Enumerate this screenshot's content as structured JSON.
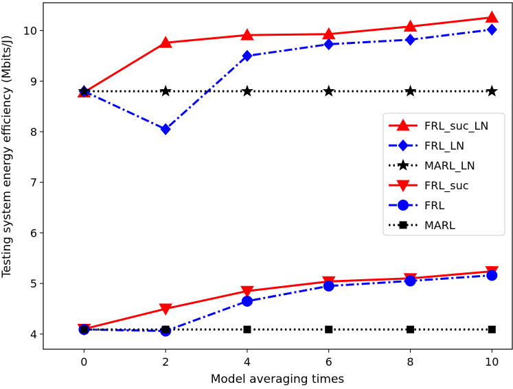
{
  "chart_data": {
    "type": "line",
    "title": "",
    "xlabel": "Model averaging times",
    "ylabel": "Testing system energy efficiency (Mbits/J)",
    "x": [
      0,
      2,
      4,
      6,
      8,
      10
    ],
    "xlim": [
      -1,
      10.5
    ],
    "ylim": [
      3.7,
      10.55
    ],
    "xticks": [
      0,
      2,
      4,
      6,
      8,
      10
    ],
    "yticks": [
      4,
      5,
      6,
      7,
      8,
      9,
      10
    ],
    "grid": false,
    "legend_position": "center-right",
    "series": [
      {
        "name": "FRL_suc_LN",
        "values": [
          8.78,
          9.76,
          9.91,
          9.93,
          10.08,
          10.26
        ],
        "color": "#ff0000",
        "linestyle": "solid",
        "marker": "triangle-up"
      },
      {
        "name": "FRL_LN",
        "values": [
          8.8,
          8.05,
          9.5,
          9.73,
          9.82,
          10.02
        ],
        "color": "#0000ff",
        "linestyle": "dashdot",
        "marker": "diamond"
      },
      {
        "name": "MARL_LN",
        "values": [
          8.8,
          8.8,
          8.8,
          8.8,
          8.8,
          8.8
        ],
        "color": "#000000",
        "linestyle": "dotted",
        "marker": "star"
      },
      {
        "name": "FRL_suc",
        "values": [
          4.1,
          4.5,
          4.85,
          5.04,
          5.1,
          5.24
        ],
        "color": "#ff0000",
        "linestyle": "solid",
        "marker": "triangle-down"
      },
      {
        "name": "FRL",
        "values": [
          4.09,
          4.06,
          4.65,
          4.95,
          5.05,
          5.16
        ],
        "color": "#0000ff",
        "linestyle": "dashdot",
        "marker": "circle"
      },
      {
        "name": "MARL",
        "values": [
          4.09,
          4.09,
          4.09,
          4.09,
          4.09,
          4.09
        ],
        "color": "#000000",
        "linestyle": "dotted",
        "marker": "square"
      }
    ]
  }
}
